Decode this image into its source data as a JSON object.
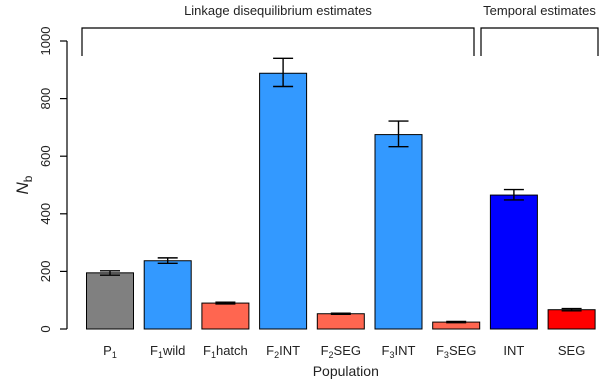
{
  "chart_data": {
    "type": "bar",
    "xlabel": "Population",
    "ylabel": {
      "main": "N",
      "sub": "b"
    },
    "ylim": [
      0,
      1000
    ],
    "yticks": [
      0,
      200,
      400,
      600,
      800,
      1000
    ],
    "grid": false,
    "legend": "none",
    "categories": [
      {
        "main": "P",
        "sub": "1",
        "rest": ""
      },
      {
        "main": "F",
        "sub": "1",
        "rest": "wild"
      },
      {
        "main": "F",
        "sub": "1",
        "rest": "hatch"
      },
      {
        "main": "F",
        "sub": "2",
        "rest": "INT"
      },
      {
        "main": "F",
        "sub": "2",
        "rest": "SEG"
      },
      {
        "main": "F",
        "sub": "3",
        "rest": "INT"
      },
      {
        "main": "F",
        "sub": "3",
        "rest": "SEG"
      },
      {
        "main": "INT",
        "sub": "",
        "rest": ""
      },
      {
        "main": "SEG",
        "sub": "",
        "rest": ""
      }
    ],
    "values": [
      195,
      237,
      90,
      888,
      53,
      675,
      24,
      465,
      67
    ],
    "errors": [
      [
        187,
        202
      ],
      [
        228,
        247
      ],
      [
        87,
        93
      ],
      [
        842,
        940
      ],
      [
        51,
        55
      ],
      [
        633,
        722
      ],
      [
        22,
        26
      ],
      [
        448,
        484
      ],
      [
        63,
        71
      ]
    ],
    "colors": [
      "#808080",
      "#3399ff",
      "#ff6650",
      "#3399ff",
      "#ff6650",
      "#3399ff",
      "#ff6650",
      "#0000ff",
      "#ff0000"
    ],
    "groups": [
      {
        "label": "Linkage disequilibrium estimates",
        "from": 0,
        "to": 6
      },
      {
        "label": "Temporal estimates",
        "from": 7,
        "to": 8
      }
    ]
  }
}
